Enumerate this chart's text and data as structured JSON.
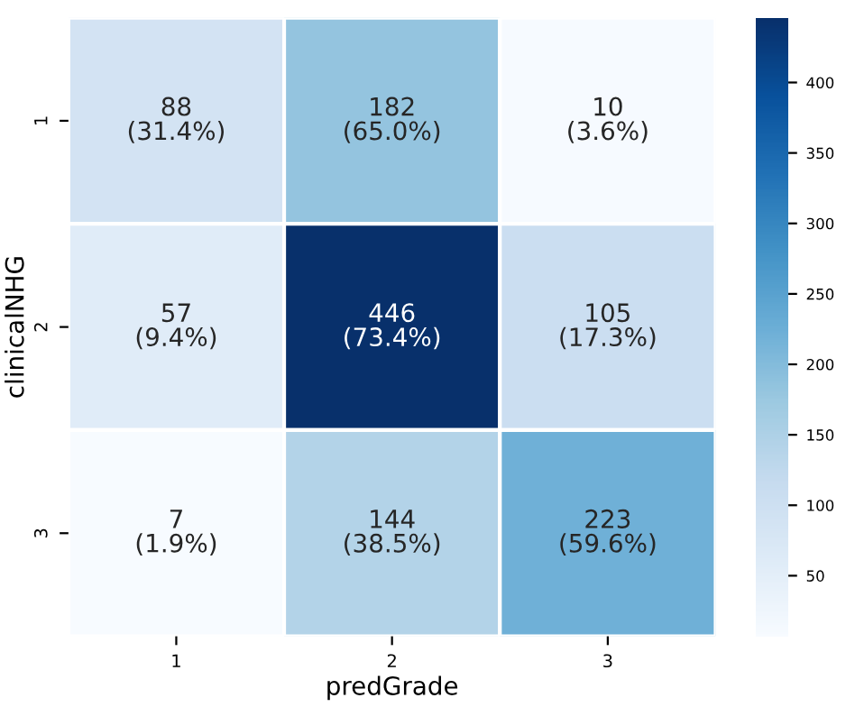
{
  "chart_data": {
    "type": "heatmap",
    "xlabel": "predGrade",
    "ylabel": "clinicalNHG",
    "categories": [
      "1",
      "2",
      "3"
    ],
    "y_categories": [
      "1",
      "2",
      "3"
    ],
    "cells": [
      [
        88,
        182,
        10
      ],
      [
        57,
        446,
        105
      ],
      [
        7,
        144,
        223
      ]
    ],
    "cell_labels": [
      [
        "88\n(31.4%)",
        "182\n(65.0%)",
        "10\n(3.6%)"
      ],
      [
        "57\n(9.4%)",
        "446\n(73.4%)",
        "105\n(17.3%)"
      ],
      [
        "7\n(1.9%)",
        "144\n(38.5%)",
        "223\n(59.6%)"
      ]
    ],
    "clim": [
      7,
      446
    ],
    "cticks": [
      50,
      100,
      150,
      200,
      250,
      300,
      350,
      400
    ]
  }
}
